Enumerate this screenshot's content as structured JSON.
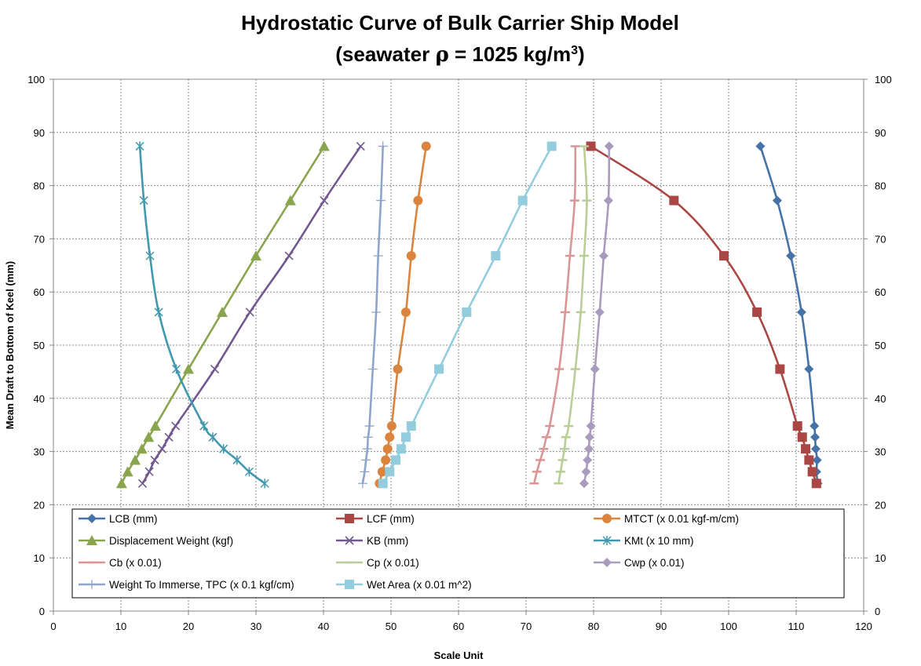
{
  "chart_data": {
    "type": "line",
    "title": "Hydrostatic Curve of Bulk Carrier Ship Model",
    "subtitle_prefix": "(seawater ",
    "subtitle_rho": "ρ",
    "subtitle_mid": " = 1025 kg/m",
    "subtitle_sup": "3",
    "subtitle_suffix": ")",
    "xlabel": "Scale Unit",
    "ylabel": "Mean Draft to Bottom of Keel (mm)",
    "xlim": [
      0,
      120
    ],
    "ylim": [
      0,
      100
    ],
    "xticks": [
      "0",
      "10",
      "20",
      "30",
      "40",
      "50",
      "60",
      "70",
      "80",
      "90",
      "100",
      "110",
      "120"
    ],
    "yticks": [
      "0",
      "10",
      "20",
      "30",
      "40",
      "50",
      "60",
      "70",
      "80",
      "90",
      "100"
    ],
    "grid": true,
    "legend_position": "bottom-center",
    "series": [
      {
        "name": "LCB (mm)",
        "color": "#4572a7",
        "marker": "diamond",
        "points": [
          [
            113.2,
            24
          ],
          [
            113,
            26.2
          ],
          [
            113.1,
            28.4
          ],
          [
            112.9,
            30.5
          ],
          [
            112.8,
            32.7
          ],
          [
            112.7,
            34.8
          ],
          [
            111.9,
            45.5
          ],
          [
            110.8,
            56.2
          ],
          [
            109.2,
            66.8
          ],
          [
            107.2,
            77.2
          ],
          [
            104.7,
            87.4
          ]
        ]
      },
      {
        "name": "LCF (mm)",
        "color": "#aa4643",
        "marker": "square",
        "points": [
          [
            113,
            24
          ],
          [
            112.4,
            26.2
          ],
          [
            111.9,
            28.4
          ],
          [
            111.4,
            30.5
          ],
          [
            110.9,
            32.7
          ],
          [
            110.2,
            34.8
          ],
          [
            107.6,
            45.5
          ],
          [
            104.2,
            56.2
          ],
          [
            99.3,
            66.8
          ],
          [
            91.9,
            77.2
          ],
          [
            79.6,
            87.4
          ]
        ]
      },
      {
        "name": "MTCT (x 0.01 kgf-m/cm)",
        "color": "#db843d",
        "marker": "circle",
        "points": [
          [
            48.3,
            24
          ],
          [
            48.7,
            26.2
          ],
          [
            49.2,
            28.4
          ],
          [
            49.5,
            30.5
          ],
          [
            49.8,
            32.7
          ],
          [
            50.1,
            34.8
          ],
          [
            51,
            45.5
          ],
          [
            52.2,
            56.2
          ],
          [
            53,
            66.8
          ],
          [
            54,
            77.2
          ],
          [
            55.2,
            87.4
          ]
        ]
      },
      {
        "name": "Displacement Weight (kgf)",
        "color": "#89a54e",
        "marker": "triangle",
        "points": [
          [
            10.1,
            24
          ],
          [
            11,
            26.2
          ],
          [
            12.1,
            28.4
          ],
          [
            13.1,
            30.5
          ],
          [
            14.1,
            32.7
          ],
          [
            15.1,
            34.8
          ],
          [
            20,
            45.5
          ],
          [
            25,
            56.2
          ],
          [
            30,
            66.8
          ],
          [
            35.1,
            77.2
          ],
          [
            40.1,
            87.4
          ]
        ]
      },
      {
        "name": "KB (mm)",
        "color": "#71588f",
        "marker": "x",
        "points": [
          [
            13.2,
            24
          ],
          [
            14.2,
            26.2
          ],
          [
            15,
            28.4
          ],
          [
            16.1,
            30.5
          ],
          [
            17.1,
            32.7
          ],
          [
            18.1,
            34.8
          ],
          [
            23.9,
            45.5
          ],
          [
            29.1,
            56.2
          ],
          [
            34.9,
            66.8
          ],
          [
            40.1,
            77.2
          ],
          [
            45.5,
            87.4
          ]
        ]
      },
      {
        "name": "KMt (x 10 mm)",
        "color": "#4198af",
        "marker": "star",
        "points": [
          [
            31.3,
            24
          ],
          [
            29,
            26.2
          ],
          [
            27.2,
            28.4
          ],
          [
            25.2,
            30.5
          ],
          [
            23.6,
            32.7
          ],
          [
            22.3,
            34.8
          ],
          [
            18.2,
            45.5
          ],
          [
            15.6,
            56.2
          ],
          [
            14.3,
            66.8
          ],
          [
            13.4,
            77.2
          ],
          [
            12.8,
            87.4
          ]
        ]
      },
      {
        "name": "Cb (x 0.01)",
        "color": "#d99694",
        "marker": "dash",
        "points": [
          [
            71.2,
            24
          ],
          [
            71.6,
            26.2
          ],
          [
            72.1,
            28.4
          ],
          [
            72.6,
            30.5
          ],
          [
            73,
            32.7
          ],
          [
            73.5,
            34.8
          ],
          [
            74.9,
            45.5
          ],
          [
            75.8,
            56.2
          ],
          [
            76.5,
            66.8
          ],
          [
            77.2,
            77.2
          ],
          [
            77.3,
            87.4
          ]
        ]
      },
      {
        "name": "Cp (x 0.01)",
        "color": "#b9cd96",
        "marker": "dash",
        "points": [
          [
            74.8,
            24
          ],
          [
            75.1,
            26.2
          ],
          [
            75.4,
            28.4
          ],
          [
            75.7,
            30.5
          ],
          [
            75.9,
            32.7
          ],
          [
            76.3,
            34.8
          ],
          [
            77.3,
            45.5
          ],
          [
            78.1,
            56.2
          ],
          [
            78.6,
            66.8
          ],
          [
            79,
            77.2
          ],
          [
            78.6,
            87.4
          ]
        ]
      },
      {
        "name": "Cwp (x 0.01)",
        "color": "#a99bbd",
        "marker": "diamond",
        "points": [
          [
            78.6,
            24
          ],
          [
            78.9,
            26.2
          ],
          [
            79.1,
            28.4
          ],
          [
            79.3,
            30.5
          ],
          [
            79.4,
            32.7
          ],
          [
            79.6,
            34.8
          ],
          [
            80.2,
            45.5
          ],
          [
            80.9,
            56.2
          ],
          [
            81.5,
            66.8
          ],
          [
            82.2,
            77.2
          ],
          [
            82.3,
            87.4
          ]
        ]
      },
      {
        "name": "Weight To Immerse, TPC (x 0.1 kgf/cm)",
        "color": "#8ea5cb",
        "marker": "plus",
        "points": [
          [
            45.8,
            24
          ],
          [
            46.1,
            26.2
          ],
          [
            46.3,
            28.4
          ],
          [
            46.5,
            30.5
          ],
          [
            46.6,
            32.7
          ],
          [
            46.8,
            34.8
          ],
          [
            47.3,
            45.5
          ],
          [
            47.8,
            56.2
          ],
          [
            48.1,
            66.8
          ],
          [
            48.5,
            77.2
          ],
          [
            48.8,
            87.4
          ]
        ]
      },
      {
        "name": "Wet Area (x 0.01 m^2)",
        "color": "#93cddd",
        "marker": "square",
        "points": [
          [
            48.8,
            24
          ],
          [
            49.8,
            26.2
          ],
          [
            50.7,
            28.4
          ],
          [
            51.5,
            30.5
          ],
          [
            52.2,
            32.7
          ],
          [
            53,
            34.8
          ],
          [
            57.1,
            45.5
          ],
          [
            61.2,
            56.2
          ],
          [
            65.5,
            66.8
          ],
          [
            69.5,
            77.2
          ],
          [
            73.8,
            87.4
          ]
        ]
      }
    ]
  }
}
